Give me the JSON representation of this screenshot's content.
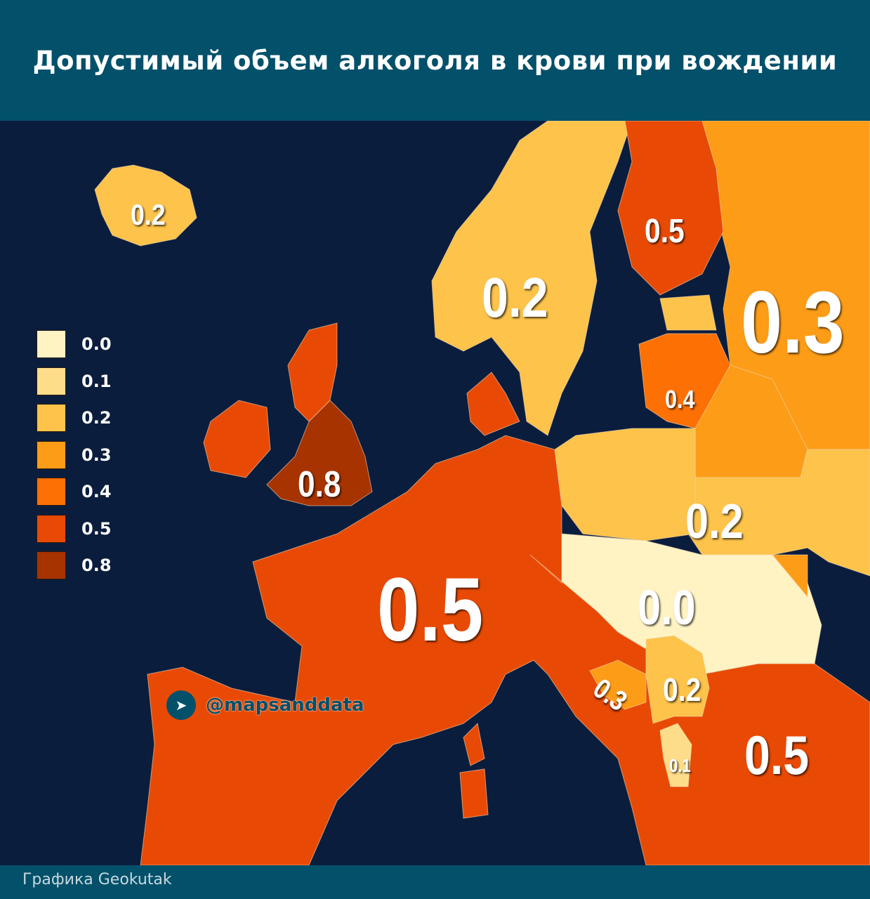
{
  "title": "Допустимый объем алкоголя в крови при вождении",
  "credit": "Графика Geokutak",
  "watermark": "@mapsanddata",
  "colors": {
    "0.0": "#fff3c4",
    "0.1": "#fedd8a",
    "0.2": "#fdc34a",
    "0.3": "#fd9c17",
    "0.4": "#fd7004",
    "0.5": "#e84a05",
    "0.8": "#a63300"
  },
  "legend": [
    {
      "label": "0.0",
      "color": "#fff3c4"
    },
    {
      "label": "0.1",
      "color": "#fedd8a"
    },
    {
      "label": "0.2",
      "color": "#fdc34a"
    },
    {
      "label": "0.3",
      "color": "#fd9c17"
    },
    {
      "label": "0.4",
      "color": "#fd7004"
    },
    {
      "label": "0.5",
      "color": "#e84a05"
    },
    {
      "label": "0.8",
      "color": "#a63300"
    }
  ],
  "map_labels": {
    "iceland": "0.2",
    "scandinavia": "0.2",
    "finland": "0.5",
    "russia": "0.3",
    "baltics": "0.4",
    "uk": "0.8",
    "western_europe": "0.5",
    "poland_ukraine": "0.2",
    "central": "0.0",
    "bosnia": "0.3",
    "serbia": "0.2",
    "albania": "0.1",
    "southeast": "0.5"
  }
}
